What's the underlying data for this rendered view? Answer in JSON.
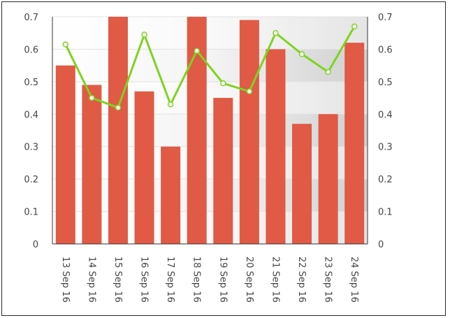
{
  "chart_data": {
    "type": "bar",
    "categories": [
      "13 Sep 16",
      "14 Sep 16",
      "15 Sep 16",
      "16 Sep 16",
      "17 Sep 16",
      "18 Sep 16",
      "19 Sep 16",
      "20 Sep 16",
      "21 Sep 16",
      "22 Sep 16",
      "23 Sep 16",
      "24 Sep 16"
    ],
    "series": [
      {
        "type": "bar",
        "color": "#e05a45",
        "values": [
          0.55,
          0.49,
          0.7,
          0.47,
          0.3,
          0.7,
          0.45,
          0.69,
          0.6,
          0.37,
          0.4,
          0.62
        ]
      },
      {
        "type": "line",
        "color": "#7ed321",
        "values": [
          0.615,
          0.45,
          0.42,
          0.645,
          0.43,
          0.595,
          0.495,
          0.47,
          0.65,
          0.585,
          0.53,
          0.67
        ]
      }
    ],
    "ylim": [
      0,
      0.7
    ],
    "yticks": [
      "0",
      "0.1",
      "0.2",
      "0.3",
      "0.4",
      "0.5",
      "0.6",
      "0.7"
    ],
    "y2ticks": [
      "0",
      "0.1",
      "0.2",
      "0.3",
      "0.4",
      "0.5",
      "0.6",
      "0.7"
    ],
    "xlabel": "",
    "ylabel": "",
    "title": "",
    "grid": true,
    "legend": "none",
    "colors": {
      "axis": "#333333",
      "text": "#444444"
    }
  }
}
